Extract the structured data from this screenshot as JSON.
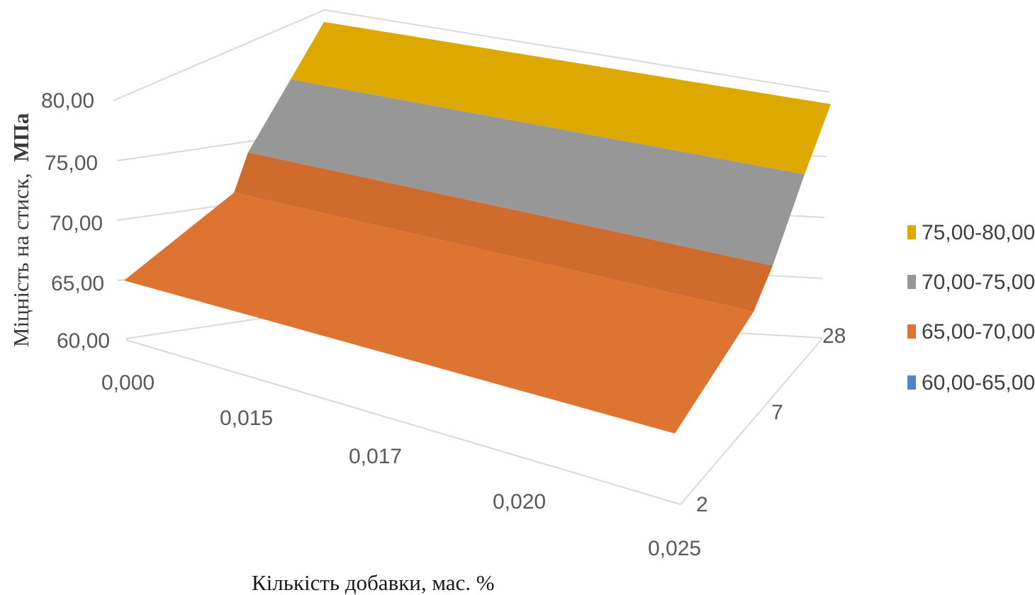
{
  "chart_data": {
    "type": "surface3d",
    "ylabel": "Міцність  на стиск,",
    "ylabel_unit": "МПа",
    "xlabel": "Кількість добавки, мас. %",
    "x_categories": [
      "0,000",
      "0,015",
      "0,017",
      "0,020",
      "0,025"
    ],
    "depth_categories": [
      "2",
      "7",
      "28"
    ],
    "z_ticks": [
      "60,00",
      "65,00",
      "70,00",
      "75,00",
      "80,00"
    ],
    "zlim": [
      60,
      80
    ],
    "values": {
      "2": [
        65,
        65,
        65,
        65,
        65
      ],
      "7": [
        67.5,
        67.5,
        67.5,
        67.5,
        67.5
      ],
      "28": [
        83,
        83,
        83,
        83,
        83
      ]
    },
    "bands": [
      {
        "label": "75,00-80,00",
        "from": 75,
        "to": 80,
        "color": "#DDA800"
      },
      {
        "label": "70,00-75,00",
        "from": 70,
        "to": 75,
        "color": "#979797"
      },
      {
        "label": "65,00-70,00",
        "from": 65,
        "to": 70,
        "color": "#DE7431"
      },
      {
        "label": "60,00-65,00",
        "from": 60,
        "to": 65,
        "color": "#4F86C6"
      }
    ],
    "legend_position": "right",
    "grid": true
  }
}
